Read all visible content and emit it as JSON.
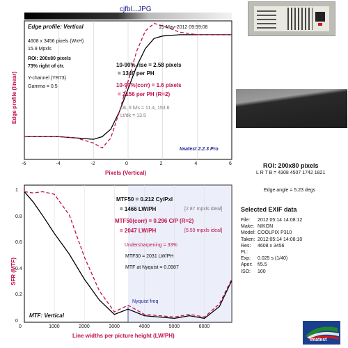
{
  "file_title": "cjfbl...JPG",
  "top_plot": {
    "title": "Edge profile: Vertical",
    "date": "15-May-2012 09:59:08",
    "info_lines": [
      "4608 x 3456 pixels (WxH)",
      "15.9 Mpxls"
    ],
    "roi_line1": "ROI: 200x80 pixels",
    "roi_line2": "73% right of ctr.",
    "channel": "Y-channel (YR73)",
    "gamma": "Gamma = 0.5",
    "rise_line1": "10-90% rise = 2.58 pixels",
    "rise_line2": "= 1340 per PH",
    "corr_line1": "10-90%(corr) = 1.6 pixels",
    "corr_line2": "= 2156 per PH  (R=2)",
    "dk_line1": "Dk, lt lvls = 11.4, 153.6",
    "dk_line2": "Lt/dk = 13.5",
    "version": "Imatest 2.2.3 Pro",
    "ylabel": "Edge profile (linear)",
    "xlabel": "Pixels (Vertical)",
    "x_ticks": [
      "-6",
      "-4",
      "-2",
      "0",
      "2",
      "4",
      "6"
    ]
  },
  "roi_label": "ROI: 200x80 pixels",
  "lrtb": "L R T B = 4308 4507  1742 1821",
  "edge_angle": "Edge angle = 5.23 degs",
  "mtf_plot": {
    "mtf50_line1": "MTF50 = 0.212 Cy/Pxl",
    "mtf50_line2": "= 1466 LW/PH",
    "mtf50_ideal": "[2.87 mpxls ideal]",
    "corr_line1": "MTF50(corr) = 0.296 C/P  (R=2)",
    "corr_line2": "= 2047 LW/PH",
    "corr_ideal": "[5.59 mpxls ideal]",
    "undersharp": "Undersharpening = 33%",
    "mtf30": "MTF30 = 2031 LW/PH",
    "nyquist": "MTF at Nyquist = 0.0987",
    "nyquist_label": "Nyquist freq",
    "title": "MTF: Vertical",
    "ylabel": "SFR (MTF)",
    "xlabel": "Line widths per picture height (LW/PH)",
    "x_ticks": [
      "0",
      "1000",
      "2000",
      "3000",
      "4000",
      "5000",
      "6000"
    ],
    "y_ticks": [
      "0",
      "0.2",
      "0.4",
      "0.6",
      "0.8",
      "1"
    ]
  },
  "exif": {
    "header": "Selected EXIF data",
    "rows": [
      {
        "k": "File:",
        "v": "2012:05:14 14:08:12"
      },
      {
        "k": "Make:",
        "v": "NIKON"
      },
      {
        "k": "Model:",
        "v": "COOLPIX P310"
      },
      {
        "k": "Taken:",
        "v": "2012:05:14 14:08:10"
      },
      {
        "k": "Res:",
        "v": "4608 x 3456"
      },
      {
        "k": "FL:",
        "v": ""
      },
      {
        "k": "Exp:",
        "v": "0.025 s  (1/40)"
      },
      {
        "k": "Aper:",
        "v": "f/5.5"
      },
      {
        "k": "ISO:",
        "v": "100"
      }
    ]
  },
  "logo_text": "Imatest",
  "colors": {
    "corrected": "#c0124b",
    "measured": "#000000",
    "nyquist_fill": "#c9cff0",
    "logo_blue": "#1a3f8f"
  },
  "chart_data": [
    {
      "type": "line",
      "title": "Edge profile: Vertical",
      "xlabel": "Pixels (Vertical)",
      "ylabel": "Edge profile (linear)",
      "xlim": [
        -6,
        6
      ],
      "series": [
        {
          "x": [
            -6,
            -4,
            -3,
            -2,
            -1.5,
            -1,
            -0.5,
            0,
            0.5,
            1,
            1.5,
            2,
            3,
            4,
            5,
            6
          ],
          "y": [
            0.08,
            0.08,
            0.07,
            0.06,
            0.08,
            0.14,
            0.28,
            0.46,
            0.64,
            0.78,
            0.86,
            0.88,
            0.89,
            0.89,
            0.89,
            0.89
          ]
        },
        {
          "x": [
            -6,
            -4,
            -3,
            -2,
            -1.5,
            -1,
            -0.5,
            0,
            0.5,
            1,
            1.5,
            2,
            3,
            4,
            5,
            6
          ],
          "y": [
            0.08,
            0.08,
            0.07,
            0.03,
            -0.01,
            0.07,
            0.28,
            0.52,
            0.76,
            0.92,
            0.98,
            0.96,
            0.91,
            0.89,
            0.89,
            0.89
          ]
        }
      ]
    },
    {
      "type": "line",
      "title": "MTF: Vertical",
      "xlabel": "Line widths per picture height (LW/PH)",
      "ylabel": "SFR (MTF)",
      "xlim": [
        0,
        6912
      ],
      "ylim": [
        0,
        1.05
      ],
      "series": [
        {
          "x": [
            0,
            300,
            600,
            1000,
            1500,
            2000,
            2500,
            3000,
            3456,
            4000,
            4500,
            5000,
            5500,
            6000,
            6500,
            6912
          ],
          "y": [
            1.0,
            0.92,
            0.82,
            0.68,
            0.52,
            0.33,
            0.17,
            0.06,
            0.1,
            0.05,
            0.04,
            0.03,
            0.05,
            0.03,
            0.12,
            0.32
          ]
        },
        {
          "x": [
            0,
            300,
            600,
            1000,
            1500,
            2000,
            2500,
            3000,
            3456,
            4000,
            4500,
            5000,
            5500,
            6000,
            6500,
            6912
          ],
          "y": [
            1.0,
            0.99,
            1.0,
            0.98,
            0.82,
            0.5,
            0.24,
            0.08,
            0.13,
            0.06,
            0.05,
            0.04,
            0.06,
            0.04,
            0.14,
            0.33
          ]
        }
      ]
    }
  ]
}
